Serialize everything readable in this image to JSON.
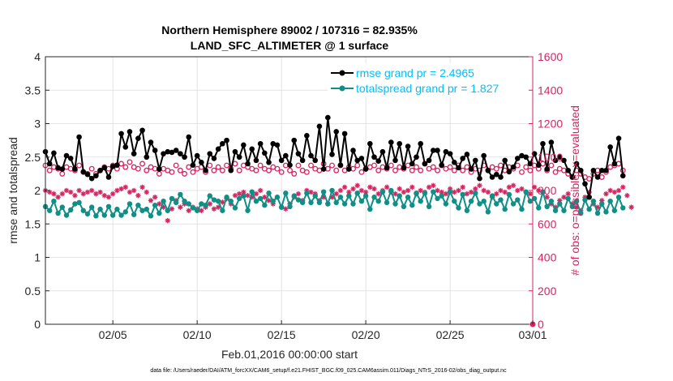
{
  "title_line1": "Northern Hemisphere 89002 / 107316 = 82.935%",
  "title_line2": "LAND_SFC_ALTIMETER @ 1 surface",
  "footnote": "data file: /Users/raeder/DAI/ATM_forcXX/CAM6_setup/f.e21.FHIST_BGC.f09_025.CAM6assim.011/Diags_NTrS_2016-02/obs_diag_output.nc",
  "colors": {
    "rmse": "#000000",
    "spread": "#0f8f86",
    "obs": "#d62460",
    "legend_text": "#00bfff"
  },
  "chart_data": {
    "type": "line",
    "xlabel": "Feb.01,2016 00:00:00 start",
    "ylabel": "rmse and totalspread",
    "y2label": "# of obs: o=possible; ×=evaluated",
    "xlim": [
      1,
      29.9
    ],
    "ylim": [
      0,
      4
    ],
    "y2lim": [
      0,
      1600
    ],
    "xticks": [
      5,
      10,
      15,
      20,
      25,
      29.9
    ],
    "xticklabels": [
      "02/05",
      "02/10",
      "02/15",
      "02/20",
      "02/25",
      "03/01"
    ],
    "yticks": [
      "0",
      "0.5",
      "1",
      "1.5",
      "2",
      "2.5",
      "3",
      "3.5",
      "4"
    ],
    "y2ticks": [
      "0",
      "200",
      "400",
      "600",
      "800",
      "1000",
      "1200",
      "1400",
      "1600"
    ],
    "grid": true,
    "legend_position": "top-right",
    "legend": [
      "rmse grand pr = 2.4965",
      "totalspread grand pr = 1.827"
    ],
    "start_day": 1,
    "step_days": 0.25,
    "rmse": [
      2.58,
      2.4,
      2.56,
      2.34,
      2.32,
      2.52,
      2.48,
      2.32,
      2.8,
      2.28,
      2.24,
      2.18,
      2.22,
      2.3,
      2.34,
      2.2,
      2.36,
      2.38,
      2.85,
      2.65,
      2.88,
      2.55,
      2.78,
      2.9,
      2.5,
      2.72,
      2.6,
      2.32,
      2.55,
      2.58,
      2.57,
      2.6,
      2.55,
      2.5,
      2.8,
      2.38,
      2.52,
      2.42,
      2.3,
      2.55,
      2.48,
      2.62,
      2.7,
      2.75,
      2.3,
      2.58,
      2.5,
      2.68,
      2.4,
      2.62,
      2.45,
      2.7,
      2.56,
      2.42,
      2.7,
      2.68,
      2.45,
      2.52,
      2.38,
      2.75,
      2.55,
      2.45,
      2.82,
      2.52,
      2.45,
      2.96,
      2.32,
      3.09,
      2.54,
      2.88,
      2.38,
      2.85,
      2.32,
      2.6,
      2.45,
      2.48,
      2.32,
      2.7,
      2.5,
      2.44,
      2.58,
      2.34,
      2.72,
      2.45,
      2.7,
      2.34,
      2.66,
      2.4,
      2.5,
      2.7,
      2.4,
      2.45,
      2.6,
      2.6,
      2.38,
      2.58,
      2.55,
      2.42,
      2.34,
      2.48,
      2.54,
      2.32,
      2.45,
      2.18,
      2.52,
      2.3,
      2.2,
      2.24,
      2.2,
      2.45,
      2.28,
      2.35,
      2.48,
      2.52,
      2.5,
      2.4,
      2.55,
      2.38,
      2.7,
      2.32,
      2.72,
      2.45,
      2.5,
      2.45,
      2.3,
      2.2,
      2.4,
      2.3,
      2.1,
      1.9,
      2.3,
      2.2,
      2.3,
      2.3,
      2.65,
      2.4,
      2.78,
      2.22
    ],
    "totalspread": [
      1.76,
      1.7,
      1.84,
      1.66,
      1.75,
      1.63,
      1.71,
      1.8,
      1.82,
      1.7,
      1.65,
      1.75,
      1.62,
      1.72,
      1.63,
      1.76,
      1.63,
      1.72,
      1.63,
      1.68,
      1.8,
      1.64,
      1.78,
      1.7,
      1.72,
      1.62,
      1.78,
      1.66,
      1.84,
      1.7,
      1.88,
      1.82,
      1.94,
      1.84,
      1.8,
      1.74,
      1.7,
      1.8,
      1.78,
      1.92,
      1.86,
      1.84,
      1.7,
      1.9,
      1.84,
      1.74,
      1.88,
      1.92,
      1.7,
      1.98,
      1.84,
      1.88,
      1.78,
      1.96,
      1.84,
      1.9,
      1.75,
      1.96,
      1.76,
      1.92,
      1.86,
      1.82,
      1.96,
      1.82,
      1.92,
      1.82,
      1.98,
      1.8,
      2.0,
      1.82,
      1.9,
      1.8,
      1.92,
      1.8,
      1.96,
      1.84,
      1.92,
      1.72,
      1.9,
      1.84,
      1.98,
      1.82,
      2.0,
      1.8,
      1.92,
      1.76,
      1.9,
      1.78,
      1.96,
      1.84,
      1.96,
      1.76,
      1.98,
      1.88,
      1.92,
      1.8,
      1.98,
      1.84,
      1.74,
      1.94,
      1.7,
      1.84,
      1.96,
      1.8,
      1.84,
      1.68,
      1.92,
      1.8,
      1.86,
      1.72,
      1.94,
      1.8,
      1.86,
      1.72,
      1.98,
      1.84,
      1.88,
      1.74,
      1.98,
      1.76,
      1.84,
      1.7,
      1.8,
      1.7,
      1.88,
      1.76,
      1.84,
      1.66,
      1.86,
      1.72,
      1.84,
      1.66,
      1.8,
      1.68,
      1.84,
      1.7,
      1.9,
      1.74
    ],
    "obs_possible": [
      950,
      920,
      940,
      930,
      900,
      940,
      930,
      920,
      950,
      910,
      900,
      930,
      900,
      920,
      940,
      930,
      950,
      930,
      960,
      940,
      970,
      940,
      930,
      960,
      920,
      940,
      930,
      900,
      930,
      920,
      910,
      950,
      920,
      900,
      940,
      910,
      930,
      940,
      910,
      950,
      920,
      940,
      920,
      950,
      930,
      960,
      920,
      950,
      940,
      930,
      920,
      950,
      930,
      920,
      940,
      930,
      910,
      950,
      920,
      900,
      950,
      920,
      910,
      950,
      930,
      920,
      960,
      930,
      950,
      920,
      950,
      920,
      940,
      930,
      950,
      910,
      930,
      940,
      950,
      920,
      940,
      930,
      950,
      920,
      940,
      930,
      950,
      920,
      940,
      920,
      960,
      930,
      940,
      920,
      950,
      930,
      940,
      920,
      950,
      920,
      940,
      910,
      930,
      920,
      950,
      920,
      940,
      930,
      950,
      920,
      940,
      930,
      950,
      910,
      940,
      920,
      950,
      930,
      960,
      920,
      950,
      910,
      930,
      920,
      900,
      880,
      920,
      900,
      880,
      870,
      900,
      920,
      880,
      910,
      940,
      950,
      960,
      920
    ],
    "obs_evaluated": [
      800,
      790,
      780,
      760,
      780,
      800,
      790,
      770,
      800,
      780,
      790,
      800,
      780,
      790,
      770,
      760,
      780,
      800,
      810,
      820,
      790,
      800,
      770,
      820,
      790,
      740,
      760,
      720,
      700,
      620,
      690,
      740,
      700,
      720,
      680,
      700,
      690,
      680,
      700,
      720,
      690,
      700,
      730,
      750,
      720,
      770,
      780,
      790,
      770,
      760,
      780,
      800,
      760,
      740,
      720,
      760,
      700,
      690,
      720,
      760,
      780,
      740,
      800,
      790,
      780,
      740,
      760,
      720,
      760,
      780,
      800,
      820,
      790,
      810,
      830,
      800,
      790,
      820,
      810,
      780,
      800,
      820,
      790,
      780,
      810,
      790,
      800,
      820,
      780,
      800,
      790,
      820,
      830,
      800,
      790,
      780,
      810,
      790,
      800,
      820,
      780,
      790,
      810,
      830,
      800,
      790,
      760,
      780,
      800,
      790,
      820,
      830,
      800,
      810,
      790,
      780,
      820,
      800,
      790,
      760,
      720,
      700,
      740,
      760,
      780,
      720,
      700,
      680,
      760,
      790,
      720,
      700,
      740,
      780,
      800,
      790,
      800,
      820,
      770,
      700
    ]
  }
}
